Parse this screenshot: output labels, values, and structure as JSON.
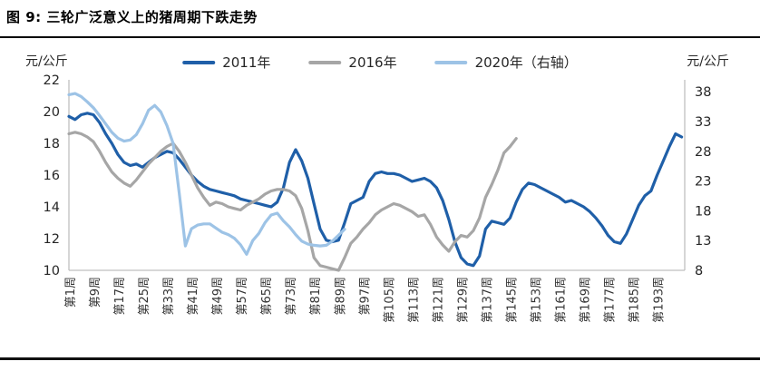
{
  "figure": {
    "title": "图 9: 三轮广泛意义上的猪周期下跌走势"
  },
  "chart_data": {
    "type": "line",
    "title": "图 9: 三轮广泛意义上的猪周期下跌走势",
    "grid": false,
    "legend_position": "top",
    "x_axis": {
      "range_weeks": [
        1,
        202
      ],
      "tick_weeks": [
        1,
        9,
        17,
        25,
        33,
        41,
        49,
        57,
        65,
        73,
        81,
        89,
        97,
        105,
        113,
        121,
        129,
        137,
        145,
        153,
        161,
        169,
        177,
        185,
        193
      ],
      "tick_labels": [
        "第1周",
        "第9周",
        "第17周",
        "第25周",
        "第33周",
        "第41周",
        "第49周",
        "第57周",
        "第65周",
        "第73周",
        "第81周",
        "第89周",
        "第97周",
        "第105周",
        "第113周",
        "第121周",
        "第129周",
        "第137周",
        "第145周",
        "第153周",
        "第161周",
        "第169周",
        "第177周",
        "第185周",
        "第193周"
      ]
    },
    "y_axis_left": {
      "unit": "元/公斤",
      "range": [
        10,
        22
      ],
      "ticks": [
        22,
        20,
        18,
        16,
        14,
        12,
        10
      ]
    },
    "y_axis_right": {
      "unit": "元/公斤",
      "range": [
        8,
        40
      ],
      "ticks": [
        38,
        33,
        28,
        23,
        18,
        13,
        8
      ]
    },
    "series": [
      {
        "name": "2011年",
        "axis": "left",
        "color": "#1f5fa8",
        "week_start": 1,
        "week_step": 2,
        "values": [
          19.7,
          19.5,
          19.8,
          19.9,
          19.8,
          19.3,
          18.6,
          18.0,
          17.3,
          16.8,
          16.6,
          16.7,
          16.5,
          16.8,
          17.1,
          17.3,
          17.5,
          17.4,
          17.0,
          16.5,
          16.0,
          15.6,
          15.3,
          15.1,
          15.0,
          14.9,
          14.8,
          14.7,
          14.5,
          14.4,
          14.3,
          14.2,
          14.1,
          14.0,
          14.3,
          15.2,
          16.8,
          17.6,
          16.9,
          15.8,
          14.2,
          12.6,
          11.9,
          11.8,
          11.9,
          13.0,
          14.2,
          14.4,
          14.6,
          15.6,
          16.1,
          16.2,
          16.1,
          16.1,
          16.0,
          15.8,
          15.6,
          15.7,
          15.8,
          15.6,
          15.2,
          14.4,
          13.2,
          11.8,
          10.8,
          10.4,
          10.3,
          10.9,
          12.6,
          13.1,
          13.0,
          12.9,
          13.3,
          14.3,
          15.1,
          15.5,
          15.4,
          15.2,
          15.0,
          14.8,
          14.6,
          14.3,
          14.4,
          14.2,
          14.0,
          13.7,
          13.3,
          12.8,
          12.2,
          11.8,
          11.7,
          12.3,
          13.2,
          14.1,
          14.7,
          15.0,
          16.0,
          16.9,
          17.8,
          18.6,
          18.4
        ]
      },
      {
        "name": "2016年",
        "axis": "left",
        "color": "#a6a6a6",
        "week_start": 1,
        "week_step": 2,
        "values": [
          18.6,
          18.7,
          18.6,
          18.4,
          18.1,
          17.5,
          16.8,
          16.2,
          15.8,
          15.5,
          15.3,
          15.7,
          16.2,
          16.7,
          17.1,
          17.5,
          17.8,
          18.0,
          17.5,
          16.8,
          16.0,
          15.2,
          14.6,
          14.1,
          14.3,
          14.2,
          14.0,
          13.9,
          13.8,
          14.1,
          14.3,
          14.5,
          14.8,
          15.0,
          15.1,
          15.1,
          15.0,
          14.7,
          13.9,
          12.5,
          10.8,
          10.3,
          10.2,
          10.1,
          10.0,
          10.8,
          11.7,
          12.1,
          12.6,
          13.0,
          13.5,
          13.8,
          14.0,
          14.2,
          14.1,
          13.9,
          13.7,
          13.4,
          13.5,
          12.9,
          12.1,
          11.6,
          11.2,
          11.8,
          12.2,
          12.1,
          12.5,
          13.3,
          14.6,
          15.4,
          16.3,
          17.4,
          17.8,
          18.3
        ]
      },
      {
        "name": "2020年（右轴）",
        "axis": "right",
        "color": "#9dc3e6",
        "week_start": 1,
        "week_step": 2,
        "values": [
          37.5,
          37.7,
          37.2,
          36.3,
          35.3,
          34.0,
          32.6,
          31.2,
          30.2,
          29.7,
          29.9,
          30.8,
          32.6,
          34.9,
          35.7,
          34.6,
          32.3,
          29.3,
          21.0,
          12.1,
          15.0,
          15.6,
          15.8,
          15.8,
          15.1,
          14.4,
          14.0,
          13.4,
          12.3,
          10.7,
          13.0,
          14.2,
          16.0,
          17.3,
          17.6,
          16.3,
          15.3,
          14.0,
          12.9,
          12.4,
          12.2,
          12.1,
          12.2,
          12.9,
          13.9,
          14.9
        ]
      }
    ]
  }
}
